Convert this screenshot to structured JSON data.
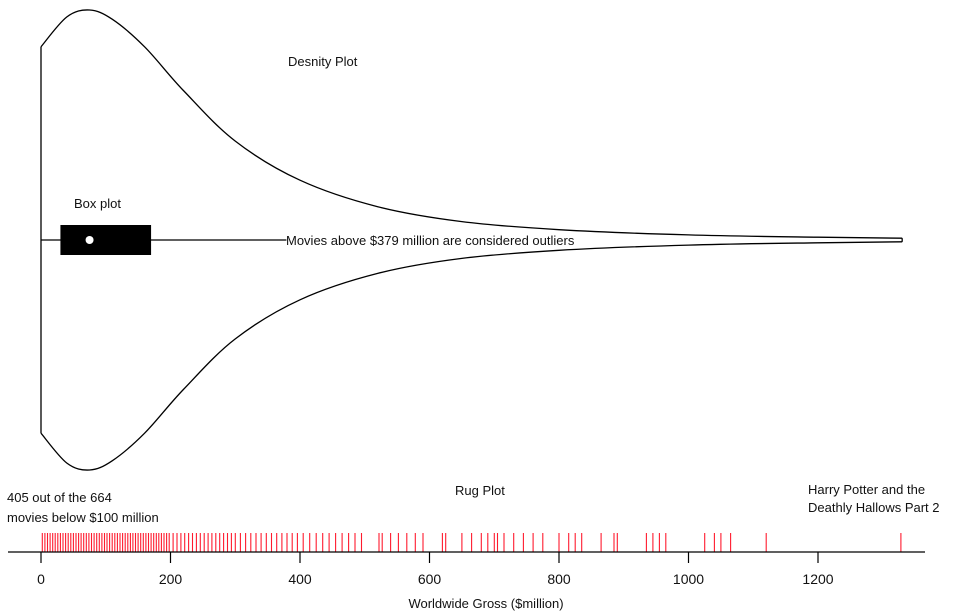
{
  "chart_data": {
    "type": "violin-box-rug",
    "xlabel": "Worldwide Gross ($million)",
    "xlim": [
      0,
      1400
    ],
    "xticks": [
      0,
      200,
      400,
      600,
      800,
      1000,
      1200
    ],
    "total_movies": 664,
    "movies_below_100m": 405,
    "density": {
      "label": "Desnity Plot",
      "x": [
        0,
        40,
        75,
        110,
        160,
        220,
        300,
        400,
        520,
        650,
        800,
        1000,
        1200,
        1330
      ],
      "relative_density": [
        0.84,
        0.97,
        1.0,
        0.96,
        0.84,
        0.65,
        0.43,
        0.26,
        0.145,
        0.08,
        0.045,
        0.022,
        0.012,
        0.008
      ]
    },
    "boxplot": {
      "label": "Box plot",
      "whisker_low": 0,
      "q1": 30,
      "median": 75,
      "q3": 170,
      "whisker_high": 379
    },
    "rug": {
      "label": "Rug Plot",
      "values": [
        2,
        6,
        10,
        14,
        18,
        22,
        26,
        30,
        34,
        38,
        42,
        46,
        50,
        54,
        58,
        62,
        66,
        70,
        74,
        78,
        82,
        86,
        90,
        94,
        98,
        102,
        106,
        110,
        114,
        118,
        122,
        126,
        130,
        134,
        138,
        142,
        146,
        150,
        154,
        158,
        162,
        166,
        170,
        174,
        178,
        182,
        186,
        190,
        194,
        198,
        204,
        210,
        216,
        222,
        228,
        234,
        240,
        246,
        252,
        258,
        264,
        270,
        276,
        282,
        288,
        294,
        300,
        308,
        316,
        324,
        332,
        340,
        348,
        356,
        364,
        372,
        380,
        388,
        396,
        405,
        415,
        425,
        435,
        445,
        455,
        465,
        475,
        485,
        495,
        522,
        527,
        540,
        552,
        565,
        578,
        590,
        620,
        625,
        650,
        665,
        680,
        690,
        700,
        705,
        715,
        730,
        745,
        760,
        775,
        800,
        815,
        825,
        835,
        865,
        885,
        890,
        935,
        945,
        955,
        965,
        1025,
        1040,
        1050,
        1065,
        1120,
        1328
      ]
    },
    "annotations": {
      "outliers": "Movies above $379 million are considered outliers",
      "below100_line1": "405 out of the 664",
      "below100_line2": "movies below $100 million",
      "max_line1": "Harry Potter and the",
      "max_line2": "Deathly Hallows Part 2"
    }
  }
}
